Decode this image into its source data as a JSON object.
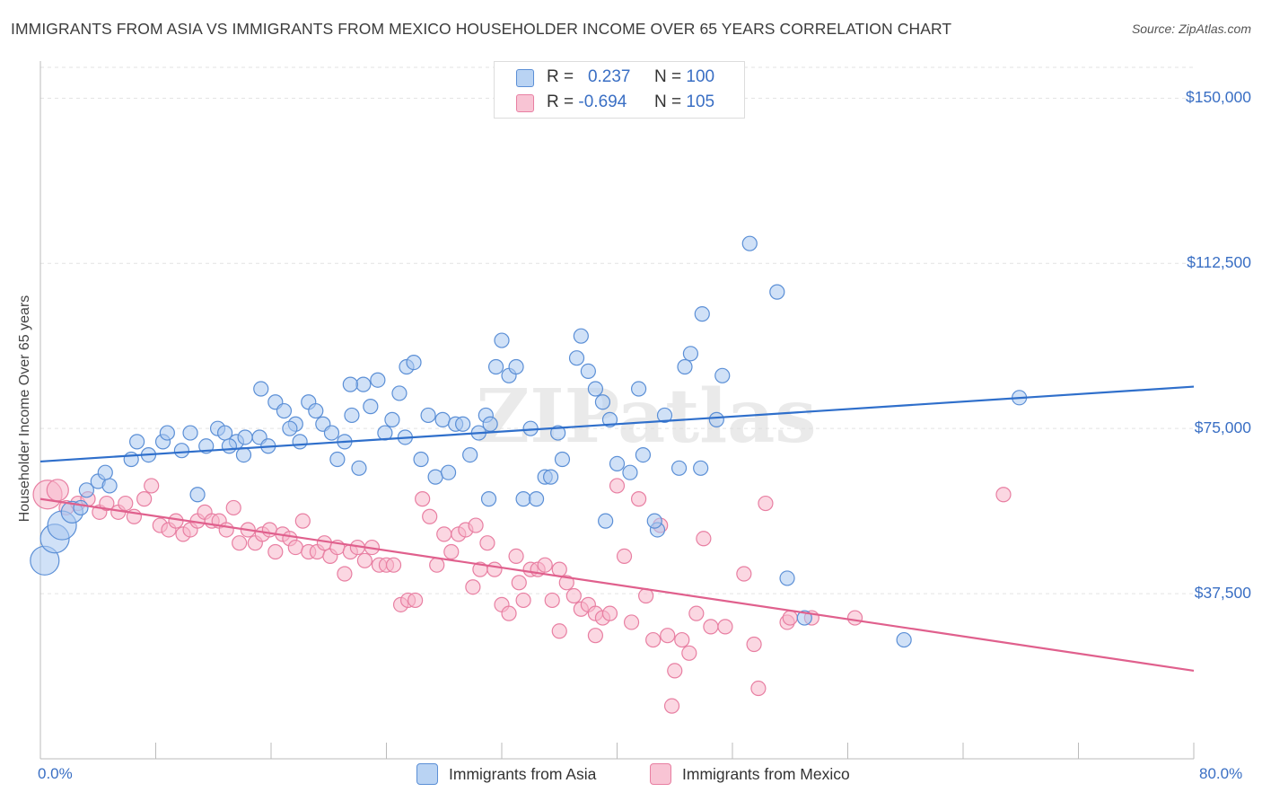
{
  "title": "IMMIGRANTS FROM ASIA VS IMMIGRANTS FROM MEXICO HOUSEHOLDER INCOME OVER 65 YEARS CORRELATION CHART",
  "source": "Source: ZipAtlas.com",
  "watermark": "ZIPatlas",
  "colors": {
    "asia_fill": "#a9c8f0",
    "asia_stroke": "#5b8fd6",
    "asia_line": "#2f6fcb",
    "mexico_fill": "#f7b6ca",
    "mexico_stroke": "#e87fa2",
    "mexico_line": "#e0608d",
    "tick_text": "#3a6fc4"
  },
  "legend": {
    "asia": {
      "r_label": "R =",
      "r_value": "0.237",
      "n_label": "N =",
      "n_value": "100"
    },
    "mexico": {
      "r_label": "R =",
      "r_value": "-0.694",
      "n_label": "N =",
      "n_value": "105"
    }
  },
  "bottom_legend": {
    "asia": "Immigrants from Asia",
    "mexico": "Immigrants from Mexico"
  },
  "chart_data": {
    "type": "scatter",
    "xlabel": "",
    "ylabel": "Householder Income Over 65 years",
    "xlim": [
      0,
      80
    ],
    "ylim": [
      0,
      157000
    ],
    "x_tick_labels": [
      "0.0%",
      "80.0%"
    ],
    "y_ticks": [
      37500,
      75000,
      112500,
      150000
    ],
    "y_tick_labels": [
      "$37,500",
      "$75,000",
      "$112,500",
      "$150,000"
    ],
    "grid": true,
    "legend_position": "top-center",
    "series": [
      {
        "name": "Immigrants from Asia",
        "r": 0.237,
        "n": 100,
        "trend": [
          [
            0,
            67500
          ],
          [
            80,
            84500
          ]
        ],
        "points": [
          [
            0.3,
            45000,
            2
          ],
          [
            1.0,
            50000,
            2
          ],
          [
            1.5,
            53000,
            2
          ],
          [
            2.2,
            56000,
            1.5
          ],
          [
            2.8,
            57000,
            1
          ],
          [
            3.2,
            61000,
            1
          ],
          [
            4.0,
            63000,
            1
          ],
          [
            4.8,
            62000,
            1
          ],
          [
            4.5,
            65000,
            1
          ],
          [
            6.3,
            68000,
            1
          ],
          [
            6.7,
            72000,
            1
          ],
          [
            7.5,
            69000,
            1
          ],
          [
            8.5,
            72000,
            1
          ],
          [
            8.8,
            74000,
            1
          ],
          [
            9.8,
            70000,
            1
          ],
          [
            10.4,
            74000,
            1
          ],
          [
            11.5,
            71000,
            1
          ],
          [
            12.3,
            75000,
            1
          ],
          [
            12.8,
            74000,
            1
          ],
          [
            13.6,
            72000,
            1
          ],
          [
            14.2,
            73000,
            1
          ],
          [
            14.1,
            69000,
            1
          ],
          [
            15.2,
            73000,
            1
          ],
          [
            15.3,
            84000,
            1
          ],
          [
            15.8,
            71000,
            1
          ],
          [
            16.3,
            81000,
            1
          ],
          [
            16.9,
            79000,
            1
          ],
          [
            17.7,
            76000,
            1
          ],
          [
            18.0,
            72000,
            1
          ],
          [
            18.6,
            81000,
            1
          ],
          [
            19.1,
            79000,
            1
          ],
          [
            19.6,
            76000,
            1
          ],
          [
            20.2,
            74000,
            1
          ],
          [
            20.6,
            68000,
            1
          ],
          [
            21.1,
            72000,
            1
          ],
          [
            21.6,
            78000,
            1
          ],
          [
            22.1,
            66000,
            1
          ],
          [
            22.4,
            85000,
            1
          ],
          [
            22.9,
            80000,
            1
          ],
          [
            23.4,
            86000,
            1
          ],
          [
            23.9,
            74000,
            1
          ],
          [
            24.4,
            77000,
            1
          ],
          [
            24.9,
            83000,
            1
          ],
          [
            25.4,
            89000,
            1
          ],
          [
            25.9,
            90000,
            1
          ],
          [
            26.4,
            68000,
            1
          ],
          [
            26.9,
            78000,
            1
          ],
          [
            27.4,
            64000,
            1
          ],
          [
            27.9,
            77000,
            1
          ],
          [
            28.3,
            65000,
            1
          ],
          [
            28.8,
            76000,
            1
          ],
          [
            29.3,
            76000,
            1
          ],
          [
            29.8,
            69000,
            1
          ],
          [
            30.4,
            74000,
            1
          ],
          [
            30.9,
            78000,
            1
          ],
          [
            31.2,
            76000,
            1
          ],
          [
            31.6,
            89000,
            1
          ],
          [
            32.0,
            95000,
            1
          ],
          [
            32.5,
            87000,
            1
          ],
          [
            33.0,
            89000,
            1
          ],
          [
            33.5,
            59000,
            1
          ],
          [
            34.0,
            75000,
            1
          ],
          [
            34.4,
            59000,
            1
          ],
          [
            35.0,
            64000,
            1
          ],
          [
            35.4,
            64000,
            1
          ],
          [
            35.9,
            74000,
            1
          ],
          [
            36.2,
            68000,
            1
          ],
          [
            37.2,
            91000,
            1
          ],
          [
            37.5,
            96000,
            1
          ],
          [
            38.0,
            88000,
            1
          ],
          [
            38.5,
            84000,
            1
          ],
          [
            39.0,
            81000,
            1
          ],
          [
            39.5,
            77000,
            1
          ],
          [
            40.0,
            67000,
            1
          ],
          [
            40.9,
            65000,
            1
          ],
          [
            41.5,
            84000,
            1
          ],
          [
            41.8,
            69000,
            1
          ],
          [
            42.8,
            52000,
            1
          ],
          [
            43.3,
            78000,
            1
          ],
          [
            44.3,
            66000,
            1
          ],
          [
            44.7,
            89000,
            1
          ],
          [
            45.1,
            92000,
            1
          ],
          [
            45.8,
            66000,
            1
          ],
          [
            46.9,
            77000,
            1
          ],
          [
            47.3,
            87000,
            1
          ],
          [
            49.2,
            117000,
            1
          ],
          [
            51.1,
            106000,
            1
          ],
          [
            45.9,
            101000,
            1
          ],
          [
            42.6,
            54000,
            1
          ],
          [
            39.2,
            54000,
            1
          ],
          [
            31.1,
            59000,
            1
          ],
          [
            25.3,
            73000,
            1
          ],
          [
            21.5,
            85000,
            1
          ],
          [
            17.3,
            75000,
            1
          ],
          [
            13.1,
            71000,
            1
          ],
          [
            10.9,
            60000,
            1
          ],
          [
            51.8,
            41000,
            1
          ],
          [
            53.0,
            32000,
            1
          ],
          [
            59.9,
            27000,
            1
          ],
          [
            67.9,
            82000,
            1
          ]
        ]
      },
      {
        "name": "Immigrants from Mexico",
        "r": -0.694,
        "n": 105,
        "trend": [
          [
            0,
            59000
          ],
          [
            80,
            20000
          ]
        ],
        "points": [
          [
            0.5,
            60000,
            2
          ],
          [
            1.2,
            61000,
            1.5
          ],
          [
            1.8,
            57000,
            1
          ],
          [
            2.6,
            58000,
            1
          ],
          [
            3.3,
            59000,
            1
          ],
          [
            4.1,
            56000,
            1
          ],
          [
            4.6,
            58000,
            1
          ],
          [
            5.4,
            56000,
            1
          ],
          [
            5.9,
            58000,
            1
          ],
          [
            6.5,
            55000,
            1
          ],
          [
            7.2,
            59000,
            1
          ],
          [
            7.7,
            62000,
            1
          ],
          [
            8.3,
            53000,
            1
          ],
          [
            8.9,
            52000,
            1
          ],
          [
            9.4,
            54000,
            1
          ],
          [
            9.9,
            51000,
            1
          ],
          [
            10.4,
            52000,
            1
          ],
          [
            10.9,
            54000,
            1
          ],
          [
            11.4,
            56000,
            1
          ],
          [
            11.9,
            54000,
            1
          ],
          [
            12.4,
            54000,
            1
          ],
          [
            12.9,
            52000,
            1
          ],
          [
            13.4,
            57000,
            1
          ],
          [
            13.8,
            49000,
            1
          ],
          [
            14.4,
            52000,
            1
          ],
          [
            14.9,
            49000,
            1
          ],
          [
            15.4,
            51000,
            1
          ],
          [
            15.9,
            52000,
            1
          ],
          [
            16.3,
            47000,
            1
          ],
          [
            16.8,
            51000,
            1
          ],
          [
            17.3,
            50000,
            1
          ],
          [
            17.7,
            48000,
            1
          ],
          [
            18.2,
            54000,
            1
          ],
          [
            18.6,
            47000,
            1
          ],
          [
            19.2,
            47000,
            1
          ],
          [
            19.7,
            49000,
            1
          ],
          [
            20.1,
            46000,
            1
          ],
          [
            20.6,
            48000,
            1
          ],
          [
            21.1,
            42000,
            1
          ],
          [
            21.5,
            47000,
            1
          ],
          [
            22.0,
            48000,
            1
          ],
          [
            22.5,
            45000,
            1
          ],
          [
            23.0,
            48000,
            1
          ],
          [
            23.5,
            44000,
            1
          ],
          [
            24.0,
            44000,
            1
          ],
          [
            24.5,
            44000,
            1
          ],
          [
            25.0,
            35000,
            1
          ],
          [
            25.5,
            36000,
            1
          ],
          [
            26.0,
            36000,
            1
          ],
          [
            26.5,
            59000,
            1
          ],
          [
            27.0,
            55000,
            1
          ],
          [
            27.5,
            44000,
            1
          ],
          [
            28.0,
            51000,
            1
          ],
          [
            28.5,
            47000,
            1
          ],
          [
            29.0,
            51000,
            1
          ],
          [
            29.5,
            52000,
            1
          ],
          [
            30.0,
            39000,
            1
          ],
          [
            30.5,
            43000,
            1
          ],
          [
            31.0,
            49000,
            1
          ],
          [
            31.5,
            43000,
            1
          ],
          [
            32.0,
            35000,
            1
          ],
          [
            32.5,
            33000,
            1
          ],
          [
            33.0,
            46000,
            1
          ],
          [
            33.5,
            36000,
            1
          ],
          [
            34.0,
            43000,
            1
          ],
          [
            34.5,
            43000,
            1
          ],
          [
            35.0,
            44000,
            1
          ],
          [
            35.5,
            36000,
            1
          ],
          [
            36.0,
            43000,
            1
          ],
          [
            36.5,
            40000,
            1
          ],
          [
            37.0,
            37000,
            1
          ],
          [
            37.5,
            34000,
            1
          ],
          [
            38.0,
            35000,
            1
          ],
          [
            38.5,
            33000,
            1
          ],
          [
            39.0,
            32000,
            1
          ],
          [
            39.5,
            33000,
            1
          ],
          [
            40.0,
            62000,
            1
          ],
          [
            40.5,
            46000,
            1
          ],
          [
            41.0,
            31000,
            1
          ],
          [
            41.5,
            59000,
            1
          ],
          [
            42.0,
            37000,
            1
          ],
          [
            42.5,
            27000,
            1
          ],
          [
            43.0,
            53000,
            1
          ],
          [
            43.5,
            28000,
            1
          ],
          [
            44.0,
            20000,
            1
          ],
          [
            44.5,
            27000,
            1
          ],
          [
            45.0,
            24000,
            1
          ],
          [
            45.5,
            33000,
            1
          ],
          [
            46.0,
            50000,
            1
          ],
          [
            46.5,
            30000,
            1
          ],
          [
            47.5,
            30000,
            1
          ],
          [
            48.8,
            42000,
            1
          ],
          [
            49.5,
            26000,
            1
          ],
          [
            49.8,
            16000,
            1
          ],
          [
            50.3,
            58000,
            1
          ],
          [
            51.8,
            31000,
            1
          ],
          [
            52.0,
            32000,
            1
          ],
          [
            53.5,
            32000,
            1
          ],
          [
            56.5,
            32000,
            1
          ],
          [
            66.8,
            60000,
            1
          ],
          [
            43.8,
            12000,
            1
          ],
          [
            38.5,
            28000,
            1
          ],
          [
            36.0,
            29000,
            1
          ],
          [
            33.2,
            40000,
            1
          ],
          [
            30.2,
            53000,
            1
          ]
        ]
      }
    ]
  }
}
